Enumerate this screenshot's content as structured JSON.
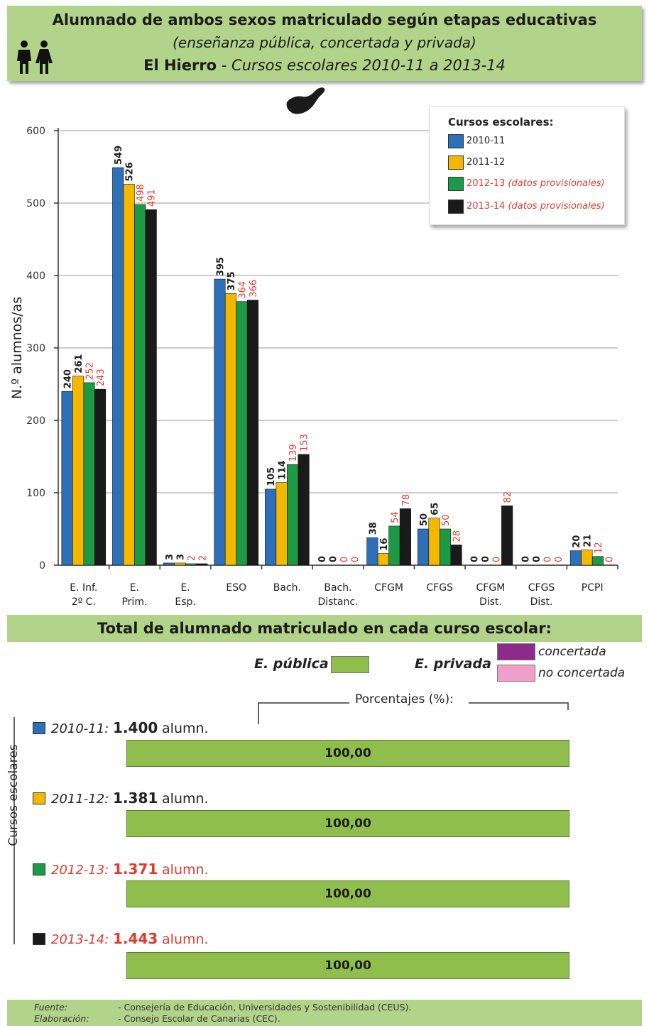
{
  "header": {
    "title": "Alumnado de ambos sexos matriculado según etapas educativas",
    "subtitle": "(enseñanza pública, concertada y privada)",
    "place": "El Hierro",
    "period": " - Cursos escolares 2010-11 a 2013-14"
  },
  "legend": {
    "title": "Cursos escolares:",
    "items": [
      {
        "year": "2010-11",
        "note": "",
        "color": "#2e6fba",
        "red": false
      },
      {
        "year": "2011-12",
        "note": "",
        "color": "#f5b800",
        "red": false
      },
      {
        "year": "2012-13",
        "note": "(datos provisionales)",
        "color": "#1e9a46",
        "red": true
      },
      {
        "year": "2013-14",
        "note": "(datos provisionales)",
        "color": "#1a1a1a",
        "red": true
      }
    ]
  },
  "chart_data": {
    "type": "bar",
    "ylabel": "N.º alumnos/as",
    "ylim": [
      0,
      600
    ],
    "yticks": [
      0,
      100,
      200,
      300,
      400,
      500,
      600
    ],
    "grid": true,
    "categories": [
      [
        "E. Inf.",
        "2º C."
      ],
      [
        "E.",
        "Prim."
      ],
      [
        "E.",
        "Esp."
      ],
      [
        "ESO",
        ""
      ],
      [
        "Bach.",
        ""
      ],
      [
        "Bach.",
        "Distanc."
      ],
      [
        "CFGM",
        ""
      ],
      [
        "CFGS",
        ""
      ],
      [
        "CFGM",
        "Dist."
      ],
      [
        "CFGS",
        "Dist."
      ],
      [
        "PCPI",
        ""
      ]
    ],
    "series": [
      {
        "name": "2010-11",
        "color": "#2e6fba",
        "label_color": "#222222",
        "values": [
          240,
          549,
          3,
          395,
          105,
          0,
          38,
          50,
          0,
          0,
          20
        ]
      },
      {
        "name": "2011-12",
        "color": "#f5b800",
        "label_color": "#222222",
        "values": [
          261,
          526,
          3,
          375,
          114,
          0,
          16,
          65,
          0,
          0,
          21
        ]
      },
      {
        "name": "2012-13 (datos provisionales)",
        "color": "#1e9a46",
        "label_color": "#e03a2e",
        "values": [
          252,
          498,
          2,
          364,
          139,
          0,
          54,
          50,
          0,
          0,
          12
        ]
      },
      {
        "name": "2013-14 (datos provisionales)",
        "color": "#1a1a1a",
        "label_color": "#e03a2e",
        "values": [
          243,
          491,
          2,
          366,
          153,
          0,
          78,
          28,
          82,
          0,
          0
        ]
      }
    ]
  },
  "totals": {
    "title": "Total de alumnado matriculado en cada curso escolar:",
    "publica_label": "E. pública",
    "privada_label": "E. privada",
    "concertada_label": "concertada",
    "no_concertada_label": "no concertada",
    "colors": {
      "publica": "#8fbe4c",
      "concertada": "#8e2a8a",
      "no_concertada": "#f0a0c8"
    },
    "percent_title": "Porcentajes (%):",
    "axis_label": "Cursos escolares",
    "unit": "alumn.",
    "years": [
      {
        "year": "2010-11:",
        "total": "1.400",
        "percent": "100,00",
        "color": "#2e6fba",
        "red": false
      },
      {
        "year": "2011-12:",
        "total": "1.381",
        "percent": "100,00",
        "color": "#f5b800",
        "red": false
      },
      {
        "year": "2012-13:",
        "total": "1.371",
        "percent": "100,00",
        "color": "#1e9a46",
        "red": true
      },
      {
        "year": "2013-14:",
        "total": "1.443",
        "percent": "100,00",
        "color": "#1a1a1a",
        "red": true
      }
    ]
  },
  "footer": {
    "fuente_label": "Fuente:",
    "fuente_text": "- Consejería de Educación, Universidades y Sostenibilidad (CEUS).",
    "elaboracion_label": "Elaboración:",
    "elaboracion_text": "- Consejo Escolar de Canarias (CEC)."
  }
}
